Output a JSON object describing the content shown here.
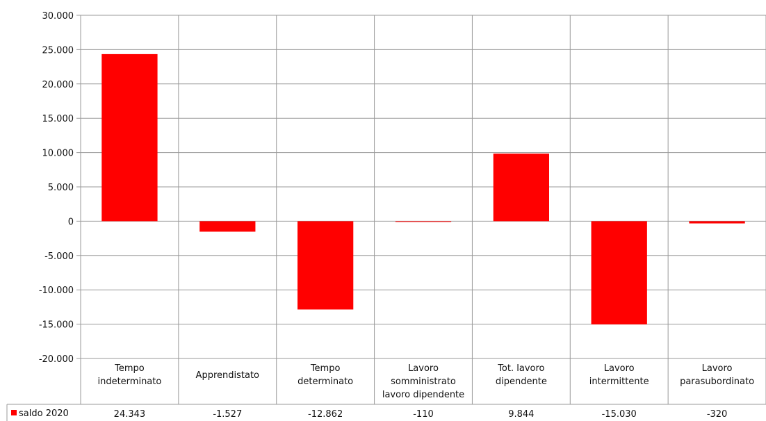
{
  "chart_data": {
    "type": "bar",
    "title": "",
    "xlabel": "",
    "ylabel": "",
    "group_label": "lavoro dipendente",
    "categories": [
      [
        "Tempo",
        "indeterminato"
      ],
      [
        "Apprendistato"
      ],
      [
        "Tempo",
        "determinato"
      ],
      [
        "Lavoro",
        "somministrato"
      ],
      [
        "Tot. lavoro",
        "dipendente"
      ],
      [
        "Lavoro",
        "intermittente"
      ],
      [
        "Lavoro",
        "parasubordinato"
      ]
    ],
    "series": [
      {
        "name": "saldo 2020",
        "color": "#ff0000",
        "values": [
          24343,
          -1527,
          -12862,
          -110,
          9844,
          -15030,
          -320
        ],
        "labels": [
          "24.343",
          "-1.527",
          "-12.862",
          "-110",
          "9.844",
          "-15.030",
          "-320"
        ]
      }
    ],
    "ylim": [
      -20000,
      30000
    ],
    "yticks": [
      30000,
      25000,
      20000,
      15000,
      10000,
      5000,
      0,
      -5000,
      -10000,
      -15000,
      -20000
    ],
    "ytick_labels": [
      "30.000",
      "25.000",
      "20.000",
      "15.000",
      "10.000",
      "5.000",
      "0",
      "-5.000",
      "-10.000",
      "-15.000",
      "-20.000"
    ],
    "grid": true,
    "legend": "data-table-left"
  }
}
